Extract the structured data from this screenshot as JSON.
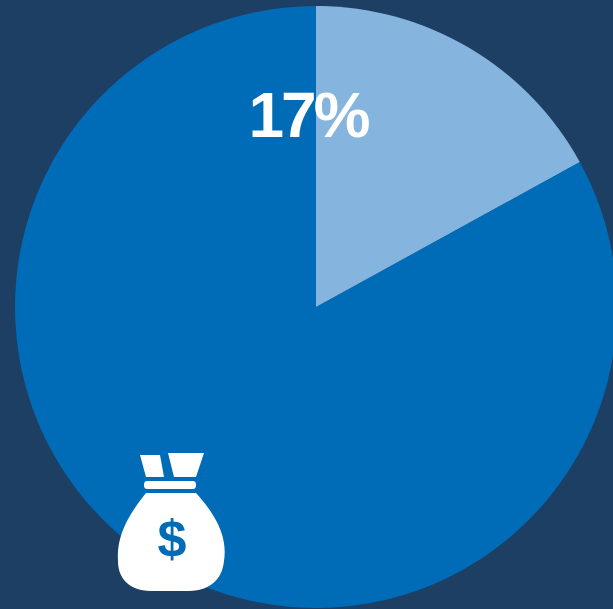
{
  "chart_data": {
    "type": "pie",
    "values": [
      17,
      83
    ],
    "value_labels": [
      "17%",
      null
    ],
    "colors": [
      "#85b5de",
      "#006bb6"
    ]
  }
}
